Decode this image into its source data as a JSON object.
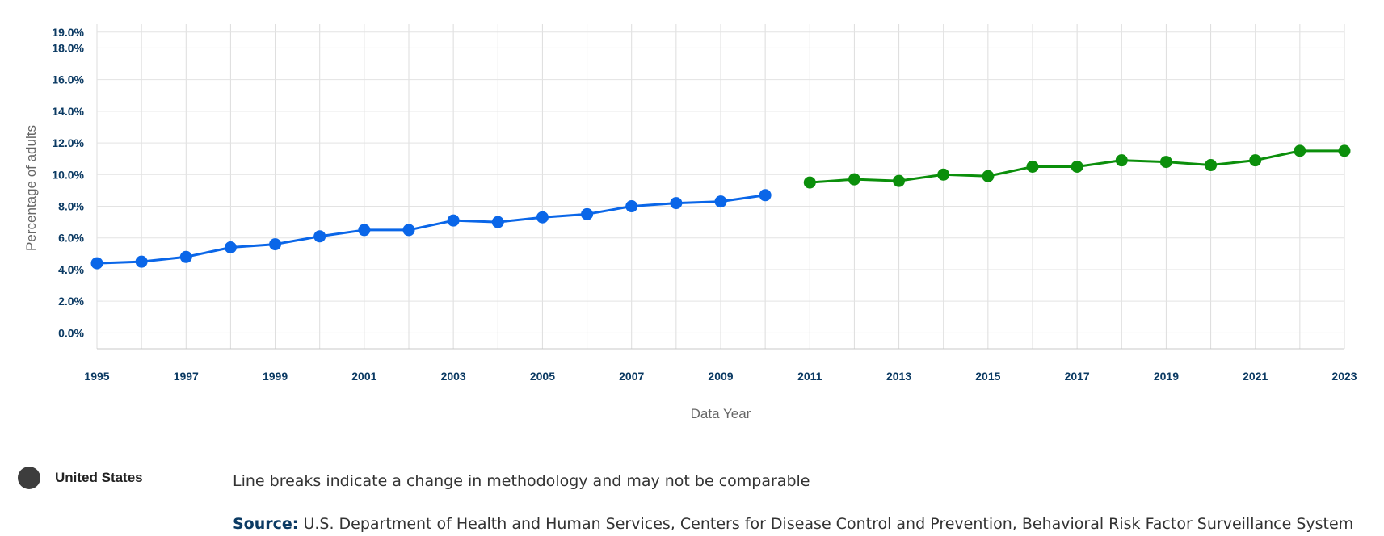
{
  "chart_data": {
    "type": "line",
    "xlabel": "Data Year",
    "ylabel": "Percentage of adults",
    "ylim": [
      -1.0,
      19.5
    ],
    "y_ticks": [
      "0.0%",
      "2.0%",
      "4.0%",
      "6.0%",
      "8.0%",
      "10.0%",
      "12.0%",
      "14.0%",
      "16.0%",
      "18.0%",
      "19.0%"
    ],
    "x_ticks": [
      "1995",
      "1997",
      "1999",
      "2001",
      "2003",
      "2005",
      "2007",
      "2009",
      "2011",
      "2013",
      "2015",
      "2017",
      "2019",
      "2021",
      "2023"
    ],
    "grid": true,
    "series": [
      {
        "color": "#0a66e8",
        "x": [
          1995,
          1996,
          1997,
          1998,
          1999,
          2000,
          2001,
          2002,
          2003,
          2004,
          2005,
          2006,
          2007,
          2008,
          2009,
          2010
        ],
        "values": [
          4.4,
          4.5,
          4.8,
          5.4,
          5.6,
          6.1,
          6.5,
          6.5,
          7.1,
          7.0,
          7.3,
          7.5,
          8.0,
          8.2,
          8.3,
          8.7
        ]
      },
      {
        "color": "#0b8f0b",
        "x": [
          2011,
          2012,
          2013,
          2014,
          2015,
          2016,
          2017,
          2018,
          2019,
          2020,
          2021,
          2022,
          2023
        ],
        "values": [
          9.5,
          9.7,
          9.6,
          10.0,
          9.9,
          10.5,
          10.5,
          10.9,
          10.8,
          10.6,
          10.9,
          11.5,
          11.5
        ]
      }
    ]
  },
  "legend": {
    "label": "United States",
    "color": "#3d3d3d"
  },
  "note": "Line breaks indicate a change in methodology and may not be comparable",
  "source": {
    "label": "Source:",
    "text": "U.S. Department of Health and Human Services, Centers for Disease Control and Prevention, Behavioral Risk Factor Surveillance System"
  }
}
